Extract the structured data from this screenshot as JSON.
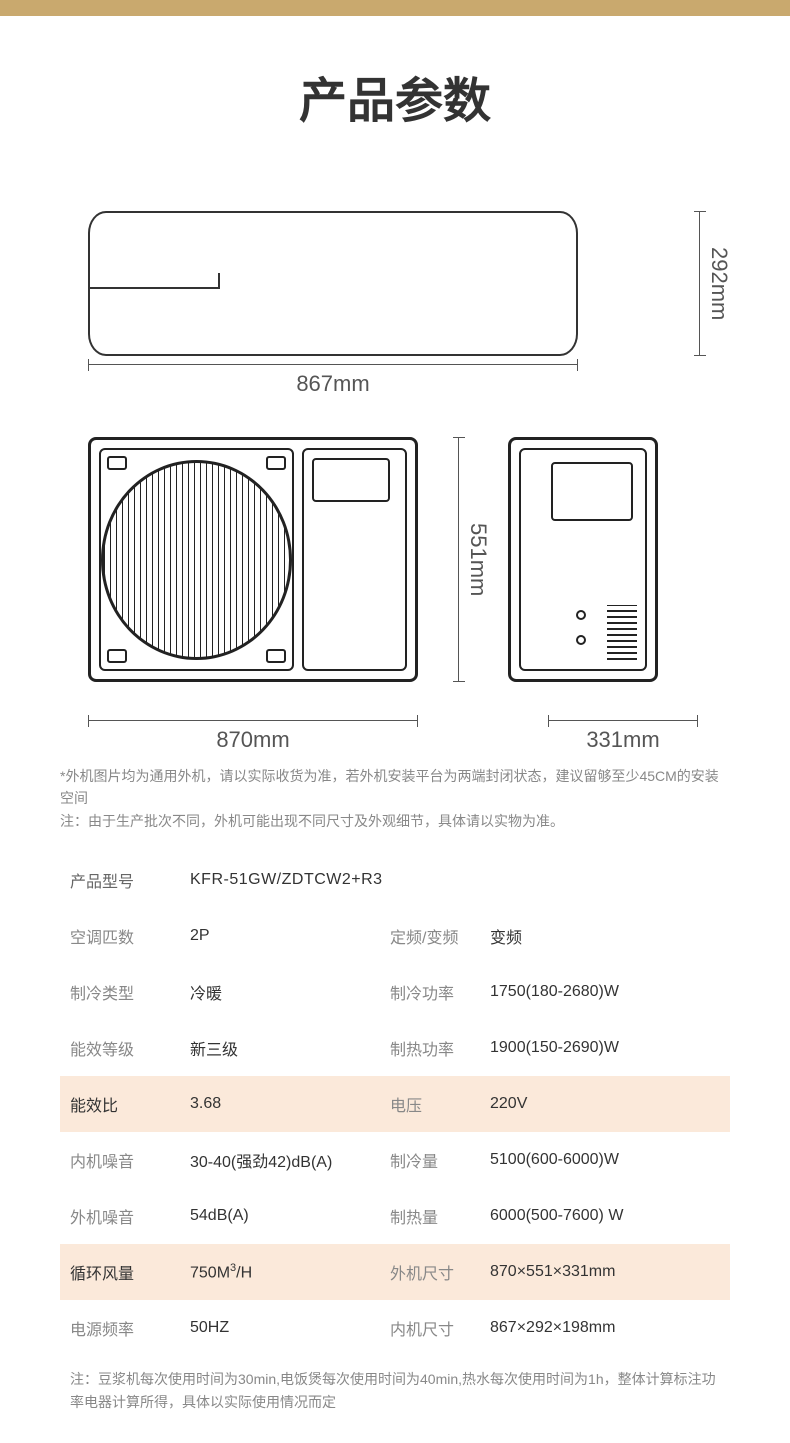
{
  "title": "产品参数",
  "dimensions": {
    "indoor_height": "292mm",
    "indoor_width": "867mm",
    "outdoor_height": "551mm",
    "outdoor_width": "870mm",
    "outdoor_depth": "331mm"
  },
  "image_note": "*外机图片均为通用外机，请以实际收货为准，若外机安装平台为两端封闭状态，建议留够至少45CM的安装空间\n注：由于生产批次不同，外机可能出现不同尺寸及外观细节，具体请以实物为准。",
  "specs": {
    "model_label": "产品型号",
    "model_value": "KFR-51GW/ZDTCW2+R3",
    "rows": [
      {
        "l1": "空调匹数",
        "v1": "2P",
        "l2": "定频/变频",
        "v2": "变频",
        "hl": false
      },
      {
        "l1": "制冷类型",
        "v1": "冷暖",
        "l2": "制冷功率",
        "v2": "1750(180-2680)W",
        "hl": false
      },
      {
        "l1": "能效等级",
        "v1": "新三级",
        "l2": "制热功率",
        "v2": "1900(150-2690)W",
        "hl": false
      },
      {
        "l1": "能效比",
        "v1": "3.68",
        "l2": "电压",
        "v2": "220V",
        "hl": true
      },
      {
        "l1": "内机噪音",
        "v1": "30-40(强劲42)dB(A)",
        "l2": "制冷量",
        "v2": "5100(600-6000)W",
        "hl": false
      },
      {
        "l1": "外机噪音",
        "v1": "54dB(A)",
        "l2": "制热量",
        "v2": "6000(500-7600) W",
        "hl": false
      },
      {
        "l1": "循环风量",
        "v1": "750M³/H",
        "l2": "外机尺寸",
        "v2": "870×551×331mm",
        "hl": true
      },
      {
        "l1": "电源频率",
        "v1": "50HZ",
        "l2": "内机尺寸",
        "v2": "867×292×198mm",
        "hl": false
      }
    ]
  },
  "footer_note": "注：豆浆机每次使用时间为30min,电饭煲每次使用时间为40min,热水每次使用时间为1h，整体计算标注功率电器计算所得，具体以实际使用情况而定"
}
